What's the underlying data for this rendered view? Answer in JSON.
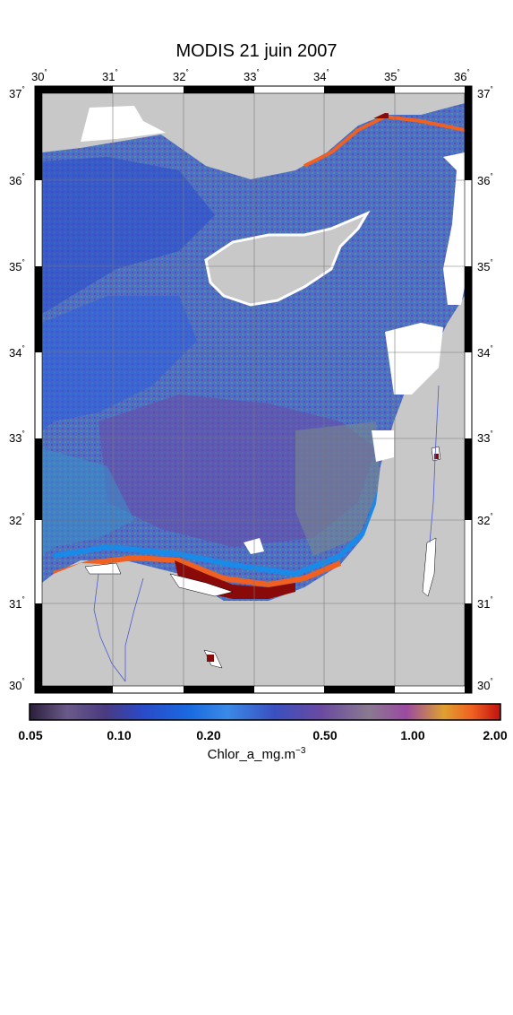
{
  "title": "MODIS 21 juin 2007",
  "map": {
    "lon_ticks": [
      "30",
      "31",
      "32",
      "33",
      "34",
      "35",
      "36"
    ],
    "lat_ticks": [
      "37",
      "36",
      "35",
      "34",
      "33",
      "32",
      "31",
      "30"
    ],
    "degree_mark": "°",
    "lon_range": [
      30,
      36
    ],
    "lat_range": [
      30,
      37
    ],
    "land_color": "#c8c8c8",
    "no_data_color": "#ffffff",
    "graticule": true
  },
  "colorbar": {
    "ticks": [
      "0.05",
      "0.10",
      "0.20",
      "0.50",
      "1.00",
      "2.00"
    ],
    "tick_values": [
      0.05,
      0.1,
      0.2,
      0.5,
      1.0,
      2.0
    ],
    "scale": "log",
    "label_base": "Chlor_a_mg.m",
    "label_exp": "−3",
    "colors": [
      "#2b1e3a",
      "#6a5a8a",
      "#5a7ab0",
      "#2a5ad0",
      "#1a6ae0",
      "#3a8ae8",
      "#5a6ab8",
      "#7a4aa0",
      "#8a7a90",
      "#c07a40",
      "#e0a030",
      "#f06020",
      "#c01010"
    ]
  }
}
